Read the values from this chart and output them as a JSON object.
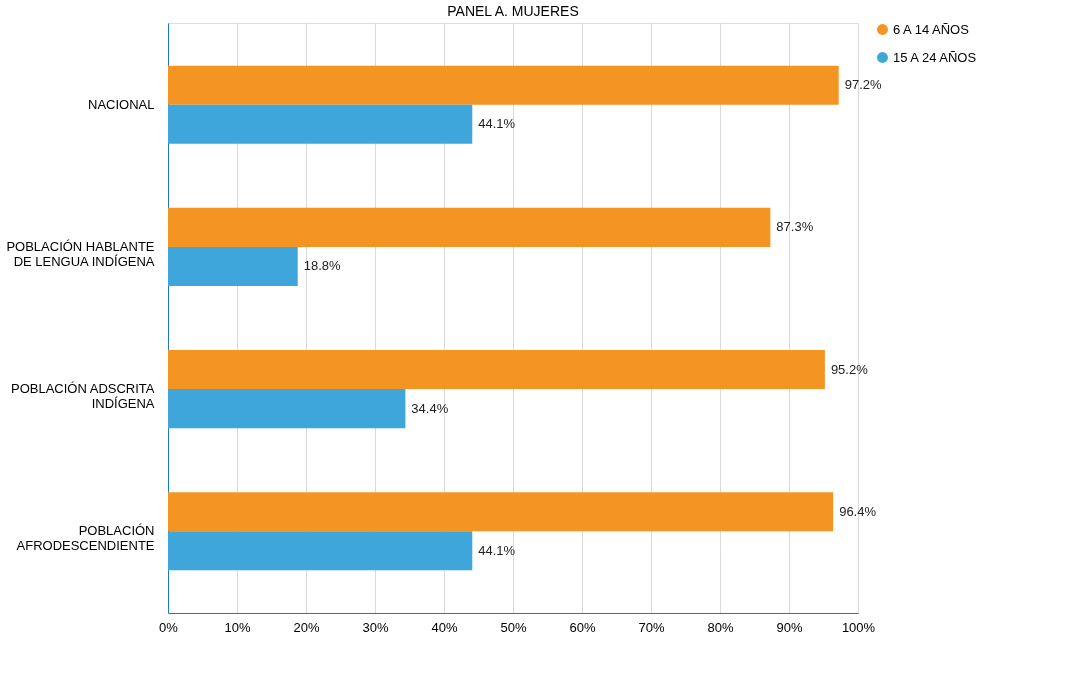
{
  "chart_data": {
    "type": "bar",
    "orientation": "horizontal",
    "title": "PANEL A. MUJERES",
    "categories": [
      "NACIONAL",
      "POBLACIÓN HABLANTE\nDE LENGUA INDÍGENA",
      "POBLACIÓN ADSCRITA\nINDÍGENA",
      "POBLACIÓN\nAFRODESCENDIENTE"
    ],
    "series": [
      {
        "name": "6  A  14 AÑOS",
        "color": "#f39423",
        "values": [
          97.2,
          87.3,
          95.2,
          96.4
        ],
        "value_labels": [
          "97.2%",
          "87.3%",
          "95.2%",
          "96.4%"
        ]
      },
      {
        "name": "15  A  24 AÑOS",
        "color": "#3fa6dc",
        "values": [
          44.1,
          18.8,
          34.4,
          44.1
        ],
        "value_labels": [
          "44.1%",
          "18.8%",
          "34.4%",
          "44.1%"
        ]
      }
    ],
    "xlim": [
      0,
      100
    ],
    "xticks": [
      {
        "value": 0,
        "label": "0%"
      },
      {
        "value": 10,
        "label": "10%"
      },
      {
        "value": 20,
        "label": "20%"
      },
      {
        "value": 30,
        "label": "30%"
      },
      {
        "value": 40,
        "label": "40%"
      },
      {
        "value": 50,
        "label": "50%"
      },
      {
        "value": 60,
        "label": "60%"
      },
      {
        "value": 70,
        "label": "70%"
      },
      {
        "value": 80,
        "label": "80%"
      },
      {
        "value": 90,
        "label": "90%"
      },
      {
        "value": 100,
        "label": "100%"
      }
    ],
    "grid": "x",
    "legend": "right"
  }
}
